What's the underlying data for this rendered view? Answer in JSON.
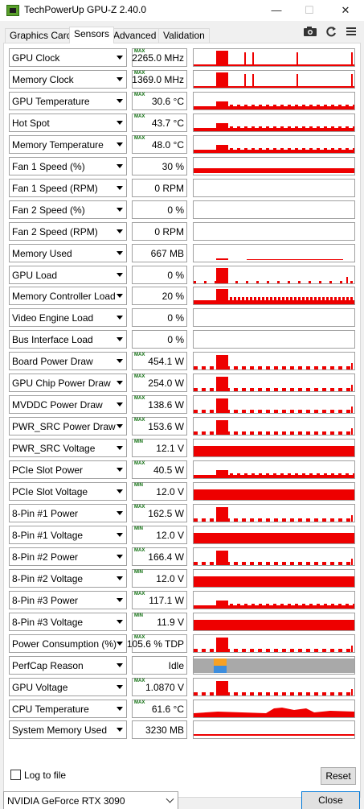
{
  "window": {
    "title": "TechPowerUp GPU-Z 2.40.0",
    "minimize_glyph": "—",
    "maximize_glyph": "☐",
    "close_glyph": "✕"
  },
  "tabs": [
    {
      "label": "Graphics Card",
      "active": false
    },
    {
      "label": "Sensors",
      "active": true
    },
    {
      "label": "Advanced",
      "active": false
    },
    {
      "label": "Validation",
      "active": false
    }
  ],
  "toolbar": {
    "icons": [
      "camera-icon",
      "refresh-icon",
      "menu-icon"
    ]
  },
  "colors": {
    "graph": "#ee0000",
    "perfcap_gray": "#a9a9a9",
    "perfcap_orange": "#f7a125",
    "perfcap_blue": "#3e8ede",
    "tag_green": "#107010"
  },
  "sensors": [
    {
      "name": "GPU Clock",
      "tag": "MAX",
      "value": "2265.0 MHz"
    },
    {
      "name": "Memory Clock",
      "tag": "MAX",
      "value": "1369.0 MHz"
    },
    {
      "name": "GPU Temperature",
      "tag": "MAX",
      "value": "30.6 °C"
    },
    {
      "name": "Hot Spot",
      "tag": "MAX",
      "value": "43.7 °C"
    },
    {
      "name": "Memory Temperature",
      "tag": "MAX",
      "value": "48.0 °C"
    },
    {
      "name": "Fan 1 Speed (%)",
      "tag": "",
      "value": "30 %"
    },
    {
      "name": "Fan 1 Speed (RPM)",
      "tag": "",
      "value": "0 RPM"
    },
    {
      "name": "Fan 2 Speed (%)",
      "tag": "",
      "value": "0 %"
    },
    {
      "name": "Fan 2 Speed (RPM)",
      "tag": "",
      "value": "0 RPM"
    },
    {
      "name": "Memory Used",
      "tag": "",
      "value": "667 MB"
    },
    {
      "name": "GPU Load",
      "tag": "",
      "value": "0 %"
    },
    {
      "name": "Memory Controller Load",
      "tag": "",
      "value": "20 %"
    },
    {
      "name": "Video Engine Load",
      "tag": "",
      "value": "0 %"
    },
    {
      "name": "Bus Interface Load",
      "tag": "",
      "value": "0 %"
    },
    {
      "name": "Board Power Draw",
      "tag": "MAX",
      "value": "454.1 W"
    },
    {
      "name": "GPU Chip Power Draw",
      "tag": "MAX",
      "value": "254.0 W"
    },
    {
      "name": "MVDDC Power Draw",
      "tag": "MAX",
      "value": "138.6 W"
    },
    {
      "name": "PWR_SRC Power Draw",
      "tag": "MAX",
      "value": "153.6 W"
    },
    {
      "name": "PWR_SRC Voltage",
      "tag": "MIN",
      "value": "12.1 V"
    },
    {
      "name": "PCIe Slot Power",
      "tag": "MAX",
      "value": "40.5 W"
    },
    {
      "name": "PCIe Slot Voltage",
      "tag": "MIN",
      "value": "12.0 V"
    },
    {
      "name": "8-Pin #1 Power",
      "tag": "MAX",
      "value": "162.5 W"
    },
    {
      "name": "8-Pin #1 Voltage",
      "tag": "MIN",
      "value": "12.0 V"
    },
    {
      "name": "8-Pin #2 Power",
      "tag": "MAX",
      "value": "166.4 W"
    },
    {
      "name": "8-Pin #2 Voltage",
      "tag": "MIN",
      "value": "12.0 V"
    },
    {
      "name": "8-Pin #3 Power",
      "tag": "MAX",
      "value": "117.1 W"
    },
    {
      "name": "8-Pin #3 Voltage",
      "tag": "MIN",
      "value": "11.9 V"
    },
    {
      "name": "Power Consumption (%)",
      "tag": "MAX",
      "value": "105.6 % TDP"
    },
    {
      "name": "PerfCap Reason",
      "tag": "",
      "value": "Idle"
    },
    {
      "name": "GPU Voltage",
      "tag": "MAX",
      "value": "1.0870 V"
    },
    {
      "name": "CPU Temperature",
      "tag": "MAX",
      "value": "61.6 °C"
    },
    {
      "name": "System Memory Used",
      "tag": "",
      "value": "3230 MB"
    }
  ],
  "footer": {
    "log_label": "Log to file",
    "log_checked": false,
    "reset_label": "Reset",
    "gpu_name": "NVIDIA GeForce RTX 3090",
    "close_label": "Close"
  }
}
